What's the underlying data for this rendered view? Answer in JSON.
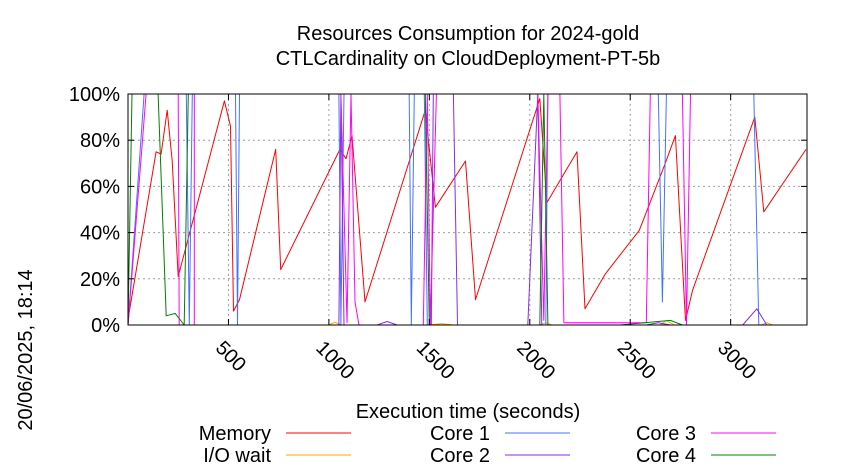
{
  "chart_data": {
    "type": "line",
    "title_line1": "Resources Consumption for 2024-gold",
    "title_line2": "CTLCardinality on CloudDeployment-PT-5b",
    "xlabel": "Execution time (seconds)",
    "ylabel": "",
    "side_label": "20/06/2025, 18:14",
    "xlim": [
      0,
      3380
    ],
    "ylim": [
      0,
      100
    ],
    "x_ticks": [
      500,
      1000,
      1500,
      2000,
      2500,
      3000
    ],
    "y_ticks": [
      0,
      20,
      40,
      60,
      80,
      100
    ],
    "y_tick_labels": [
      "0%",
      "20%",
      "40%",
      "60%",
      "80%",
      "100%"
    ],
    "grid": true,
    "legend_position": "bottom",
    "series": [
      {
        "name": "Memory",
        "color": "#ff0000",
        "points": [
          [
            0,
            0
          ],
          [
            5,
            5
          ],
          [
            140,
            75
          ],
          [
            165,
            74
          ],
          [
            195,
            93
          ],
          [
            220,
            71
          ],
          [
            250,
            21
          ],
          [
            480,
            97
          ],
          [
            510,
            86
          ],
          [
            525,
            6
          ],
          [
            555,
            11
          ],
          [
            735,
            76
          ],
          [
            760,
            24
          ],
          [
            1055,
            76
          ],
          [
            1085,
            72
          ],
          [
            1115,
            82
          ],
          [
            1180,
            10
          ],
          [
            1480,
            93
          ],
          [
            1530,
            51
          ],
          [
            1680,
            71
          ],
          [
            1730,
            11
          ],
          [
            2050,
            98
          ],
          [
            2085,
            53
          ],
          [
            2235,
            75
          ],
          [
            2275,
            7
          ],
          [
            2375,
            22
          ],
          [
            2545,
            41
          ],
          [
            2670,
            69
          ],
          [
            2725,
            82
          ],
          [
            2775,
            2
          ],
          [
            2810,
            15
          ],
          [
            3120,
            90
          ],
          [
            3165,
            49
          ],
          [
            3375,
            76
          ]
        ]
      },
      {
        "name": "I/O wait",
        "color": "#ffa500",
        "points": [
          [
            0,
            0
          ],
          [
            1000,
            0
          ],
          [
            1030,
            1.2
          ],
          [
            1060,
            0
          ],
          [
            1500,
            0
          ],
          [
            1560,
            0.6
          ],
          [
            1620,
            0
          ],
          [
            2050,
            0
          ],
          [
            2080,
            1
          ],
          [
            2110,
            0
          ],
          [
            2650,
            0
          ],
          [
            2680,
            2
          ],
          [
            2720,
            0
          ],
          [
            3150,
            0
          ],
          [
            3180,
            1
          ],
          [
            3210,
            0
          ],
          [
            3375,
            0
          ]
        ]
      },
      {
        "name": "Core 1",
        "color": "#4472ff",
        "points": [
          [
            0,
            0
          ],
          [
            80,
            100
          ],
          [
            290,
            100
          ],
          [
            305,
            0
          ],
          [
            320,
            100
          ],
          [
            535,
            100
          ],
          [
            545,
            0
          ],
          [
            555,
            100
          ],
          [
            1050,
            100
          ],
          [
            1060,
            0
          ],
          [
            1075,
            100
          ],
          [
            1400,
            100
          ],
          [
            1410,
            0
          ],
          [
            1425,
            100
          ],
          [
            1475,
            100
          ],
          [
            1490,
            0
          ],
          [
            1510,
            0
          ],
          [
            1990,
            0
          ],
          [
            2080,
            0
          ],
          [
            2090,
            100
          ],
          [
            2640,
            100
          ],
          [
            2660,
            10
          ],
          [
            2680,
            100
          ],
          [
            3115,
            100
          ],
          [
            3140,
            0
          ],
          [
            3375,
            0
          ]
        ]
      },
      {
        "name": "Core 2",
        "color": "#8a2be2",
        "points": [
          [
            0,
            0
          ],
          [
            1050,
            0
          ],
          [
            1060,
            100
          ],
          [
            1075,
            0
          ],
          [
            1240,
            0
          ],
          [
            1290,
            1.5
          ],
          [
            1340,
            0
          ],
          [
            1510,
            0
          ],
          [
            1520,
            100
          ],
          [
            1620,
            100
          ],
          [
            1640,
            0
          ],
          [
            1990,
            0
          ],
          [
            2040,
            100
          ],
          [
            2060,
            0
          ],
          [
            2580,
            0
          ],
          [
            2640,
            1
          ],
          [
            2700,
            0
          ],
          [
            3060,
            0
          ],
          [
            3130,
            7
          ],
          [
            3180,
            0
          ],
          [
            3375,
            0
          ]
        ]
      },
      {
        "name": "Core 3",
        "color": "#ff00ff",
        "points": [
          [
            0,
            0
          ],
          [
            90,
            100
          ],
          [
            250,
            100
          ],
          [
            255,
            0
          ],
          [
            330,
            0
          ],
          [
            330,
            100
          ],
          [
            1060,
            100
          ],
          [
            1090,
            1
          ],
          [
            1110,
            100
          ],
          [
            1130,
            10
          ],
          [
            1150,
            0
          ],
          [
            1470,
            0
          ],
          [
            1490,
            100
          ],
          [
            1505,
            0
          ],
          [
            1535,
            100
          ],
          [
            2040,
            100
          ],
          [
            2070,
            2
          ],
          [
            2090,
            100
          ],
          [
            2150,
            100
          ],
          [
            2170,
            1
          ],
          [
            2580,
            1
          ],
          [
            2600,
            100
          ],
          [
            2760,
            100
          ],
          [
            2780,
            0
          ],
          [
            2800,
            100
          ],
          [
            3375,
            100
          ]
        ]
      },
      {
        "name": "Core 4",
        "color": "#008000",
        "points": [
          [
            0,
            0
          ],
          [
            20,
            100
          ],
          [
            150,
            100
          ],
          [
            190,
            4
          ],
          [
            235,
            5
          ],
          [
            280,
            0
          ],
          [
            300,
            100
          ],
          [
            1480,
            100
          ],
          [
            1500,
            0
          ],
          [
            2050,
            0
          ],
          [
            2070,
            100
          ],
          [
            2090,
            0
          ],
          [
            2150,
            0
          ],
          [
            2450,
            0
          ],
          [
            2700,
            2
          ],
          [
            2760,
            0
          ],
          [
            3375,
            0
          ]
        ]
      }
    ]
  }
}
